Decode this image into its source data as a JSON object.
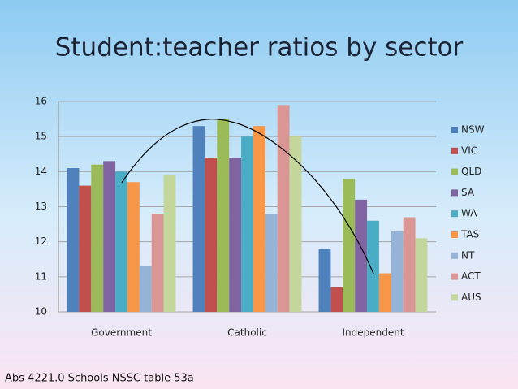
{
  "chart_data": {
    "type": "bar",
    "title": "Student:teacher ratios by sector",
    "source": "Abs 4221.0 Schools NSSC table 53a",
    "categories": [
      "Government",
      "Catholic",
      "Independent"
    ],
    "series": [
      {
        "name": "NSW",
        "color": "#4f81bd",
        "values": [
          14.1,
          15.3,
          11.8
        ]
      },
      {
        "name": "VIC",
        "color": "#c0504d",
        "values": [
          13.6,
          14.4,
          10.7
        ]
      },
      {
        "name": "QLD",
        "color": "#9bbb59",
        "values": [
          14.2,
          15.5,
          13.8
        ]
      },
      {
        "name": "SA",
        "color": "#8064a2",
        "values": [
          14.3,
          14.4,
          13.2
        ]
      },
      {
        "name": "WA",
        "color": "#4bacc6",
        "values": [
          14.0,
          15.0,
          12.6
        ]
      },
      {
        "name": "TAS",
        "color": "#f79646",
        "values": [
          13.7,
          15.3,
          11.1
        ]
      },
      {
        "name": "NT",
        "color": "#95b3d7",
        "values": [
          11.3,
          12.8,
          12.3
        ]
      },
      {
        "name": "ACT",
        "color": "#d99694",
        "values": [
          12.8,
          15.9,
          12.7
        ]
      },
      {
        "name": "AUS",
        "color": "#c3d69b",
        "values": [
          13.9,
          15.0,
          12.1
        ]
      }
    ],
    "ylim": [
      10,
      16
    ],
    "yticks": [
      10,
      11,
      12,
      13,
      14,
      15,
      16
    ],
    "grid": true,
    "legend": "right"
  }
}
